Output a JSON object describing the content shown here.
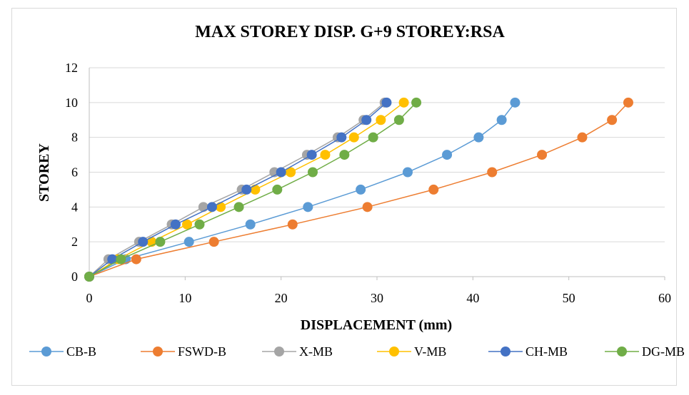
{
  "chart_data": {
    "type": "line",
    "title": "MAX STOREY DISP. G+9 STOREY:RSA",
    "xlabel": "DISPLACEMENT (mm)",
    "ylabel": "STOREY",
    "xlim": [
      0,
      60
    ],
    "ylim": [
      0,
      12
    ],
    "xticks": [
      "0",
      "10",
      "20",
      "30",
      "40",
      "50",
      "60"
    ],
    "yticks": [
      "0",
      "2",
      "4",
      "6",
      "8",
      "10",
      "12"
    ],
    "grid": "horizontal",
    "legend_position": "bottom",
    "series": [
      {
        "name": "CB-B",
        "color": "#5b9bd5",
        "points": [
          [
            0,
            0
          ],
          [
            3.8,
            1
          ],
          [
            10.4,
            2
          ],
          [
            16.8,
            3
          ],
          [
            22.8,
            4
          ],
          [
            28.3,
            5
          ],
          [
            33.2,
            6
          ],
          [
            37.3,
            7
          ],
          [
            40.6,
            8
          ],
          [
            43.0,
            9
          ],
          [
            44.4,
            10
          ]
        ]
      },
      {
        "name": "FSWD-B",
        "color": "#ed7d31",
        "points": [
          [
            0,
            0
          ],
          [
            4.9,
            1
          ],
          [
            13.0,
            2
          ],
          [
            21.2,
            3
          ],
          [
            29.0,
            4
          ],
          [
            35.9,
            5
          ],
          [
            42.0,
            6
          ],
          [
            47.2,
            7
          ],
          [
            51.4,
            8
          ],
          [
            54.5,
            9
          ],
          [
            56.2,
            10
          ]
        ]
      },
      {
        "name": "X-MB",
        "color": "#a5a5a5",
        "points": [
          [
            0,
            0
          ],
          [
            2.0,
            1
          ],
          [
            5.2,
            2
          ],
          [
            8.6,
            3
          ],
          [
            11.9,
            4
          ],
          [
            15.9,
            5
          ],
          [
            19.3,
            6
          ],
          [
            22.7,
            7
          ],
          [
            25.9,
            8
          ],
          [
            28.6,
            9
          ],
          [
            30.8,
            10
          ]
        ]
      },
      {
        "name": "V-MB",
        "color": "#ffc000",
        "points": [
          [
            0,
            0
          ],
          [
            3.0,
            1
          ],
          [
            6.5,
            2
          ],
          [
            10.2,
            3
          ],
          [
            13.7,
            4
          ],
          [
            17.3,
            5
          ],
          [
            21.0,
            6
          ],
          [
            24.6,
            7
          ],
          [
            27.6,
            8
          ],
          [
            30.4,
            9
          ],
          [
            32.8,
            10
          ]
        ]
      },
      {
        "name": "CH-MB",
        "color": "#4472c4",
        "points": [
          [
            0,
            0
          ],
          [
            2.4,
            1
          ],
          [
            5.6,
            2
          ],
          [
            9.0,
            3
          ],
          [
            12.8,
            4
          ],
          [
            16.4,
            5
          ],
          [
            20.0,
            6
          ],
          [
            23.2,
            7
          ],
          [
            26.3,
            8
          ],
          [
            28.9,
            9
          ],
          [
            31.0,
            10
          ]
        ]
      },
      {
        "name": "DG-MB",
        "color": "#70ad47",
        "points": [
          [
            0,
            0
          ],
          [
            3.3,
            1
          ],
          [
            7.4,
            2
          ],
          [
            11.5,
            3
          ],
          [
            15.6,
            4
          ],
          [
            19.6,
            5
          ],
          [
            23.3,
            6
          ],
          [
            26.6,
            7
          ],
          [
            29.6,
            8
          ],
          [
            32.3,
            9
          ],
          [
            34.1,
            10
          ]
        ]
      }
    ]
  }
}
